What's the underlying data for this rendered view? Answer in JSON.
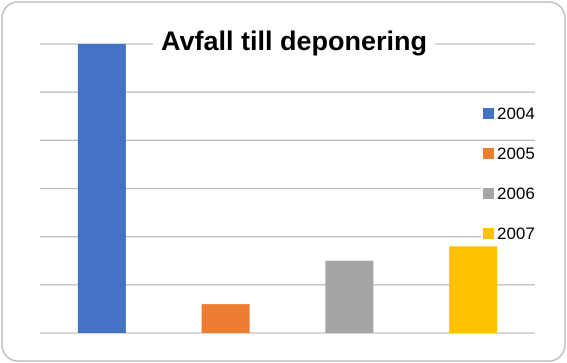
{
  "chart_data": {
    "type": "bar",
    "title": "Avfall till deponering",
    "categories": [
      "2004",
      "2005",
      "2006",
      "2007"
    ],
    "series": [
      {
        "name": "2004",
        "color": "#4472C4",
        "values": [
          6.0,
          null,
          null,
          null
        ]
      },
      {
        "name": "2005",
        "color": "#ED7D31",
        "values": [
          null,
          0.6,
          null,
          null
        ]
      },
      {
        "name": "2006",
        "color": "#A5A5A5",
        "values": [
          null,
          null,
          1.5,
          null
        ]
      },
      {
        "name": "2007",
        "color": "#FFC000",
        "values": [
          null,
          null,
          null,
          1.8
        ]
      }
    ],
    "ylim": [
      0,
      6
    ],
    "y_gridlines": 6,
    "grid": true,
    "axis_labels_shown": false,
    "legend_position": "right"
  }
}
